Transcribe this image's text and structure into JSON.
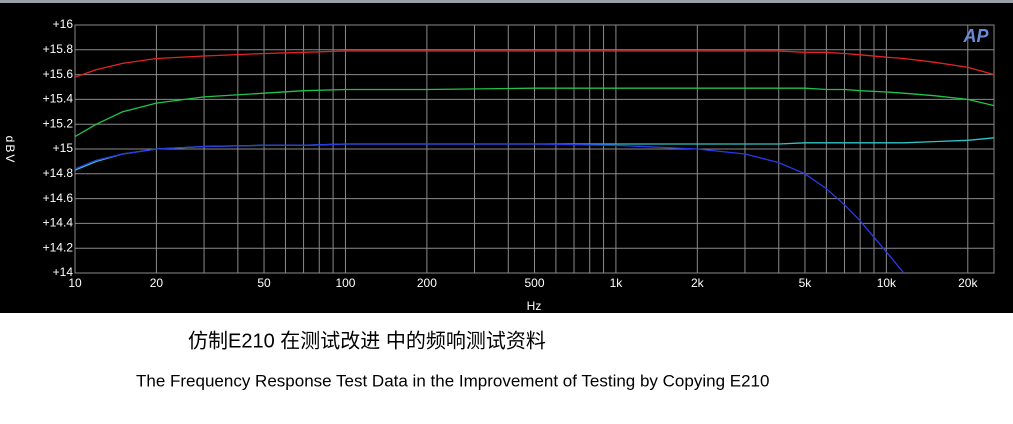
{
  "chart_data": {
    "type": "line",
    "title": "仿制E210 在测试改进 中的频响测试资料",
    "subtitle": "The Frequency Response Test Data in the Improvement of Testing by Copying E210",
    "logo": "AP",
    "x_label": "Hz",
    "y_label": "dBV",
    "log_x": true,
    "grid": true,
    "x": [
      10,
      12,
      15,
      20,
      30,
      50,
      70,
      100,
      200,
      500,
      1000,
      2000,
      3000,
      4000,
      5000,
      6000,
      7000,
      8000,
      10000,
      11600,
      15000,
      20000,
      25000
    ],
    "series": [
      {
        "color": "#e02424",
        "values": [
          15.58,
          15.64,
          15.69,
          15.73,
          15.75,
          15.77,
          15.78,
          15.79,
          15.79,
          15.79,
          15.79,
          15.79,
          15.79,
          15.79,
          15.78,
          15.78,
          15.77,
          15.76,
          15.74,
          15.73,
          15.7,
          15.66,
          15.6
        ]
      },
      {
        "color": "#22c24a",
        "values": [
          15.1,
          15.2,
          15.3,
          15.37,
          15.42,
          15.45,
          15.47,
          15.48,
          15.48,
          15.49,
          15.49,
          15.49,
          15.49,
          15.49,
          15.49,
          15.48,
          15.48,
          15.47,
          15.46,
          15.45,
          15.43,
          15.4,
          15.35
        ]
      },
      {
        "color": "#30c4c4",
        "values": [
          14.83,
          14.9,
          14.96,
          15.0,
          15.02,
          15.03,
          15.03,
          15.04,
          15.04,
          15.04,
          15.04,
          15.04,
          15.04,
          15.04,
          15.05,
          15.05,
          15.05,
          15.05,
          15.05,
          15.05,
          15.06,
          15.07,
          15.09
        ]
      },
      {
        "color": "#2a3ae8",
        "values": [
          14.84,
          14.91,
          14.96,
          15.0,
          15.02,
          15.03,
          15.03,
          15.04,
          15.04,
          15.04,
          15.03,
          15.0,
          14.96,
          14.89,
          14.8,
          14.68,
          14.55,
          14.42,
          14.17,
          14.0,
          null,
          null,
          null
        ]
      }
    ],
    "xlim": [
      10,
      25000
    ],
    "ylim": [
      14,
      16
    ],
    "xticks": [
      10,
      20,
      50,
      100,
      200,
      500,
      {
        "value": 1000,
        "label": "1k"
      },
      {
        "value": 2000,
        "label": "2k"
      },
      {
        "value": 5000,
        "label": "5k"
      },
      {
        "value": 10000,
        "label": "10k"
      },
      {
        "value": 20000,
        "label": "20k"
      }
    ],
    "xminorticks": [
      30,
      40,
      60,
      70,
      80,
      90,
      300,
      400,
      600,
      700,
      800,
      900,
      3000,
      4000,
      6000,
      7000,
      8000,
      9000
    ],
    "yticks": [
      {
        "value": 14,
        "label": "+14"
      },
      {
        "value": 14.2,
        "label": "+14.2"
      },
      {
        "value": 14.4,
        "label": "+14.4"
      },
      {
        "value": 14.6,
        "label": "+14.6"
      },
      {
        "value": 14.8,
        "label": "+14.8"
      },
      {
        "value": 15,
        "label": "+15"
      },
      {
        "value": 15.2,
        "label": "+15.2"
      },
      {
        "value": 15.4,
        "label": "+15.4"
      },
      {
        "value": 15.6,
        "label": "+15.6"
      },
      {
        "value": 15.8,
        "label": "+15.8"
      },
      {
        "value": 16,
        "label": "+16"
      }
    ]
  }
}
